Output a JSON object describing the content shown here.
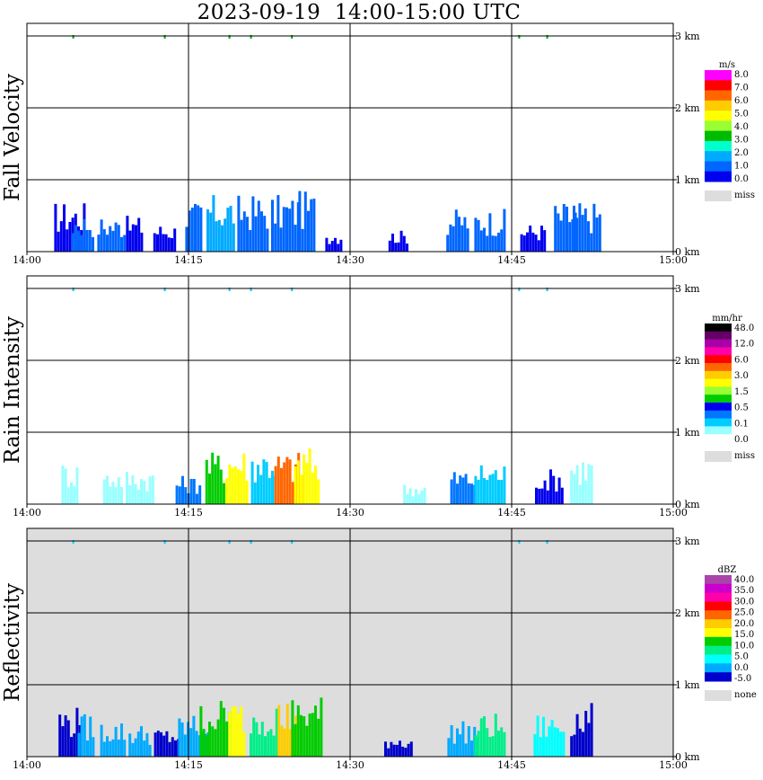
{
  "title": "2023-09-19  14:00-15:00 UTC",
  "chart_data": [
    {
      "type": "heatmap",
      "ylabel": "Fall Velocity",
      "x_ticks": [
        "14:00",
        "14:15",
        "14:30",
        "14:45",
        "15:00"
      ],
      "y_ticks": [
        "0 km",
        "1 km",
        "2 km",
        "3 km"
      ],
      "xlim_minutes": [
        0,
        60
      ],
      "ylim_km": [
        0,
        3
      ],
      "background": "#ffffff",
      "grid": true,
      "legend": {
        "unit": "m/s",
        "labels": [
          "8.0",
          "7.0",
          "6.0",
          "5.0",
          "4.0",
          "3.0",
          "2.0",
          "1.0",
          "0.0"
        ],
        "colors": [
          "#ff00ff",
          "#ff0000",
          "#ff6600",
          "#ffcc00",
          "#ffff00",
          "#99ff33",
          "#00bb00",
          "#00ffcc",
          "#00aaff",
          "#0066ff",
          "#0000ee"
        ],
        "missing_label": "miss",
        "missing_color": "#dddddd"
      },
      "echo_cells": [
        [
          4,
          0.7,
          "#0000ee"
        ],
        [
          5.2,
          0.55,
          "#0066ff"
        ],
        [
          8,
          0.5,
          "#0066ff"
        ],
        [
          10,
          0.5,
          "#0000ee"
        ],
        [
          12.8,
          0.4,
          "#0000ee"
        ],
        [
          15.5,
          0.7,
          "#0066ff"
        ],
        [
          18,
          0.8,
          "#00aaff"
        ],
        [
          21,
          0.8,
          "#0066ff"
        ],
        [
          24,
          0.8,
          "#0066ff"
        ],
        [
          26,
          0.85,
          "#0066ff"
        ],
        [
          28.5,
          0.3,
          "#0000ee"
        ],
        [
          34.5,
          0.3,
          "#0000ee"
        ],
        [
          40,
          0.6,
          "#0066ff"
        ],
        [
          43,
          0.6,
          "#0066ff"
        ],
        [
          47,
          0.4,
          "#0000ee"
        ],
        [
          50,
          0.7,
          "#0066ff"
        ],
        [
          52,
          0.7,
          "#0066ff"
        ]
      ],
      "top_marks_min": [
        4.3,
        12.8,
        18.8,
        20.8,
        24.6,
        45.7,
        48.3
      ],
      "top_mark_color": "#00aa00"
    },
    {
      "type": "heatmap",
      "ylabel": "Rain Intensity",
      "x_ticks": [
        "14:00",
        "14:15",
        "14:30",
        "14:45",
        "15:00"
      ],
      "y_ticks": [
        "0 km",
        "1 km",
        "2 km",
        "3 km"
      ],
      "xlim_minutes": [
        0,
        60
      ],
      "ylim_km": [
        0,
        3
      ],
      "background": "#ffffff",
      "grid": true,
      "legend": {
        "unit": "mm/hr",
        "labels": [
          "48.0",
          "12.0",
          "6.0",
          "3.0",
          "1.5",
          "0.5",
          "0.1",
          "0.0"
        ],
        "colors": [
          "#000000",
          "#660066",
          "#aa00aa",
          "#ff00aa",
          "#ff0000",
          "#ff6600",
          "#ffcc00",
          "#ffff00",
          "#99ff33",
          "#00cc00",
          "#0000ee",
          "#0077ff",
          "#00ccff",
          "#99ffff",
          "#ffffff"
        ],
        "missing_label": "miss",
        "missing_color": "#dddddd"
      },
      "echo_cells": [
        [
          4,
          0.6,
          "#99ffff"
        ],
        [
          8,
          0.5,
          "#99ffff"
        ],
        [
          10.5,
          0.5,
          "#99ffff"
        ],
        [
          15,
          0.4,
          "#0077ff"
        ],
        [
          17.5,
          0.75,
          "#00cc00"
        ],
        [
          19.5,
          0.8,
          "#ffff00"
        ],
        [
          22,
          0.8,
          "#00ccff"
        ],
        [
          24.3,
          0.75,
          "#ff6600"
        ],
        [
          26,
          0.8,
          "#ffff00"
        ],
        [
          36,
          0.3,
          "#99ffff"
        ],
        [
          40.5,
          0.5,
          "#0077ff"
        ],
        [
          43,
          0.6,
          "#00ccff"
        ],
        [
          48.5,
          0.5,
          "#0000ee"
        ],
        [
          51.5,
          0.7,
          "#99ffff"
        ]
      ],
      "top_marks_min": [
        4.3,
        12.8,
        18.8,
        20.8,
        24.6,
        45.7,
        48.3
      ],
      "top_mark_color": "#00ccff"
    },
    {
      "type": "heatmap",
      "ylabel": "Reflectivity",
      "x_ticks": [
        "14:00",
        "14:15",
        "14:30",
        "14:45",
        "15:00"
      ],
      "y_ticks": [
        "0 km",
        "1 km",
        "2 km",
        "3 km"
      ],
      "xlim_minutes": [
        0,
        60
      ],
      "ylim_km": [
        0,
        3
      ],
      "background": "#dddddd",
      "grid": true,
      "legend": {
        "unit": "dBZ",
        "labels": [
          "40.0",
          "35.0",
          "30.0",
          "25.0",
          "20.0",
          "15.0",
          "10.0",
          "5.0",
          "0.0",
          "-5.0"
        ],
        "colors": [
          "#aa44aa",
          "#cc00cc",
          "#ff00aa",
          "#ff0000",
          "#ff6600",
          "#ffcc00",
          "#ffff00",
          "#00cc00",
          "#00ee88",
          "#00ffff",
          "#00aaff",
          "#0000cc"
        ],
        "missing_label": "none",
        "missing_color": "#dddddd"
      },
      "echo_cells": [
        [
          4,
          0.7,
          "#0000cc"
        ],
        [
          5.5,
          0.6,
          "#00aaff"
        ],
        [
          8,
          0.5,
          "#00aaff"
        ],
        [
          10.5,
          0.45,
          "#00aaff"
        ],
        [
          13,
          0.4,
          "#0000cc"
        ],
        [
          15.5,
          0.6,
          "#00aaff"
        ],
        [
          17.5,
          0.8,
          "#00cc00"
        ],
        [
          19.5,
          0.8,
          "#ffff00"
        ],
        [
          22,
          0.8,
          "#00ee88"
        ],
        [
          24.2,
          0.8,
          "#ffcc00"
        ],
        [
          26,
          0.85,
          "#00cc00"
        ],
        [
          34.5,
          0.3,
          "#0000cc"
        ],
        [
          40.5,
          0.5,
          "#00aaff"
        ],
        [
          43,
          0.6,
          "#00ee88"
        ],
        [
          48.5,
          0.6,
          "#00ffff"
        ],
        [
          51.5,
          0.75,
          "#0000cc"
        ]
      ],
      "top_marks_min": [
        4.3,
        12.8,
        18.8,
        20.8,
        24.6,
        45.7,
        48.3
      ],
      "top_mark_color": "#00ccff"
    }
  ]
}
